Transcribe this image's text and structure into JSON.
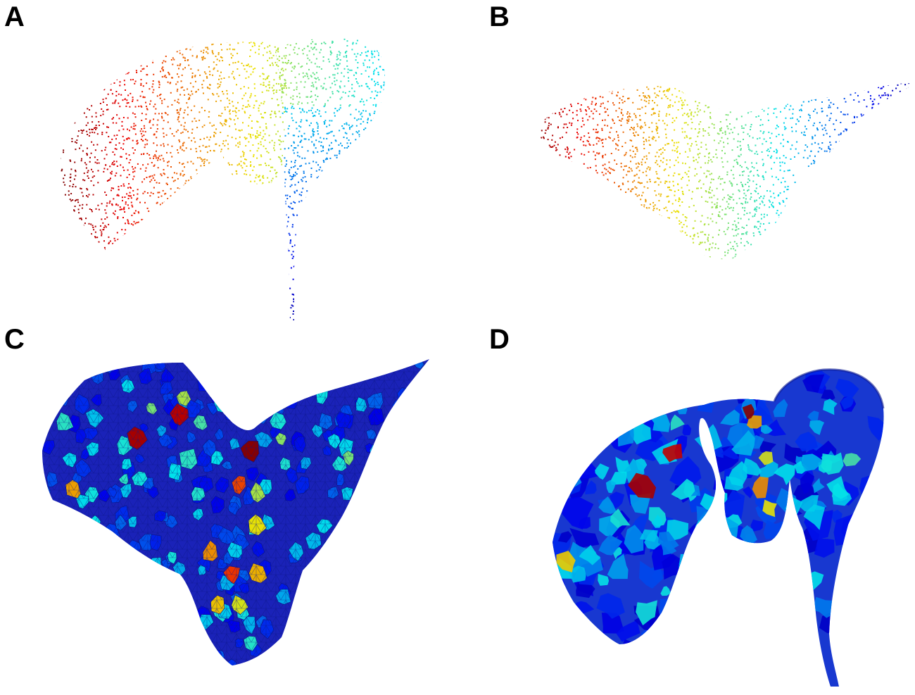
{
  "figure": {
    "panels": [
      {
        "label": "A",
        "content": "point-cloud",
        "colormap": "jet"
      },
      {
        "label": "B",
        "content": "point-cloud",
        "colormap": "jet"
      },
      {
        "label": "C",
        "content": "triangulated-surface",
        "colormap": "jet"
      },
      {
        "label": "D",
        "content": "shaded-surface",
        "colormap": "jet"
      }
    ],
    "colors": {
      "jet_dark_blue": "#0f1fb0",
      "jet_blue": "#1f4fe0",
      "jet_cyan": "#20d8d8",
      "jet_green": "#2ee02e",
      "jet_yellow": "#d8d820",
      "jet_orange": "#f08020",
      "jet_red": "#e02020",
      "jet_dark_red": "#9a0a0a"
    }
  }
}
